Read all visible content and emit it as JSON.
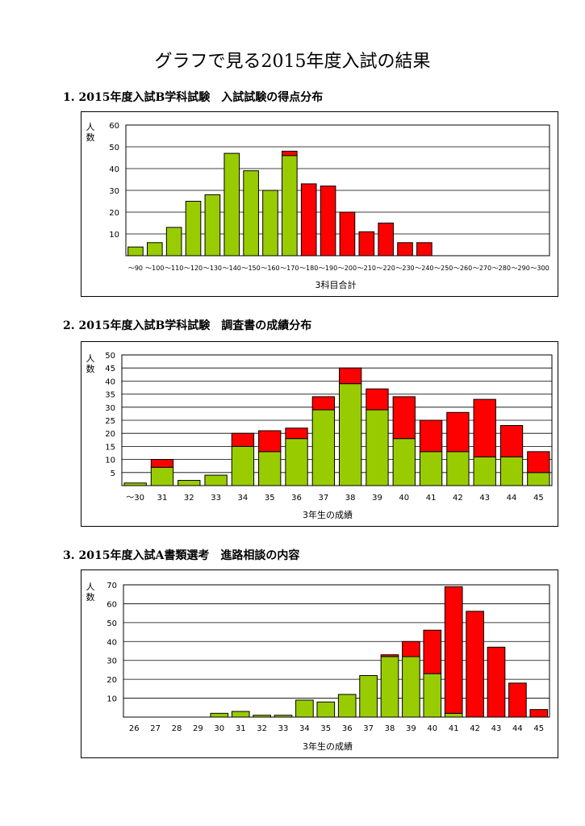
{
  "page_title": "グラフで見る2015年度入試の結果",
  "sections": [
    {
      "heading": "1. 2015年度入試B学科試験　入試試験の得点分布"
    },
    {
      "heading": "2. 2015年度入試B学科試験　調査書の成績分布"
    },
    {
      "heading": "3. 2015年度入試A書類選考　進路相談の内容"
    }
  ],
  "colors": {
    "green": "#99cc00",
    "red": "#ff0000",
    "grid": "#000000"
  },
  "chart_data": [
    {
      "type": "bar",
      "stacked": true,
      "ylabel": "人数",
      "xlabel": "3科目合計",
      "ylim": [
        0,
        60
      ],
      "yticks": [
        10,
        20,
        30,
        40,
        50,
        60
      ],
      "grid": true,
      "categories": [
        "～90",
        "～100",
        "～110",
        "～120",
        "～130",
        "～140",
        "～150",
        "～160",
        "～170",
        "～180",
        "～190",
        "～200",
        "～210",
        "～220",
        "～230",
        "～240",
        "～250",
        "～260",
        "～270",
        "～280",
        "～290",
        "～300"
      ],
      "series": [
        {
          "color": "green",
          "values": [
            4,
            6,
            13,
            25,
            28,
            47,
            39,
            30,
            46,
            0,
            0,
            0,
            0,
            0,
            0,
            0,
            0,
            0,
            0,
            0,
            0,
            0
          ]
        },
        {
          "color": "red",
          "values": [
            0,
            0,
            0,
            0,
            0,
            0,
            0,
            0,
            2,
            33,
            32,
            20,
            11,
            15,
            6,
            6,
            0,
            0,
            0,
            0,
            0,
            0
          ]
        }
      ]
    },
    {
      "type": "bar",
      "stacked": true,
      "ylabel": "人数",
      "xlabel": "3年生の成績",
      "ylim": [
        0,
        50
      ],
      "yticks": [
        5,
        10,
        15,
        20,
        25,
        30,
        35,
        40,
        45,
        50
      ],
      "grid": true,
      "categories": [
        "～30",
        "31",
        "32",
        "33",
        "34",
        "35",
        "36",
        "37",
        "38",
        "39",
        "40",
        "41",
        "42",
        "43",
        "44",
        "45"
      ],
      "series": [
        {
          "color": "green",
          "values": [
            1,
            7,
            2,
            4,
            15,
            13,
            18,
            29,
            39,
            29,
            18,
            13,
            13,
            11,
            11,
            5
          ]
        },
        {
          "color": "red",
          "values": [
            0,
            3,
            0,
            0,
            5,
            8,
            4,
            5,
            6,
            8,
            16,
            12,
            15,
            22,
            12,
            8
          ]
        }
      ]
    },
    {
      "type": "bar",
      "stacked": true,
      "ylabel": "人数",
      "xlabel": "3年生の成績",
      "ylim": [
        0,
        70
      ],
      "yticks": [
        10,
        20,
        30,
        40,
        50,
        60,
        70
      ],
      "grid": true,
      "categories": [
        "26",
        "27",
        "28",
        "29",
        "30",
        "31",
        "32",
        "33",
        "34",
        "35",
        "36",
        "37",
        "38",
        "39",
        "40",
        "41",
        "42",
        "43",
        "44",
        "45"
      ],
      "series": [
        {
          "color": "green",
          "values": [
            0,
            0,
            0,
            0,
            2,
            3,
            1,
            1,
            9,
            8,
            12,
            22,
            32,
            32,
            23,
            2,
            0,
            0,
            0,
            0
          ]
        },
        {
          "color": "red",
          "values": [
            0,
            0,
            0,
            0,
            0,
            0,
            0,
            0,
            0,
            0,
            0,
            0,
            1,
            8,
            23,
            67,
            56,
            37,
            18,
            4
          ]
        }
      ]
    }
  ]
}
